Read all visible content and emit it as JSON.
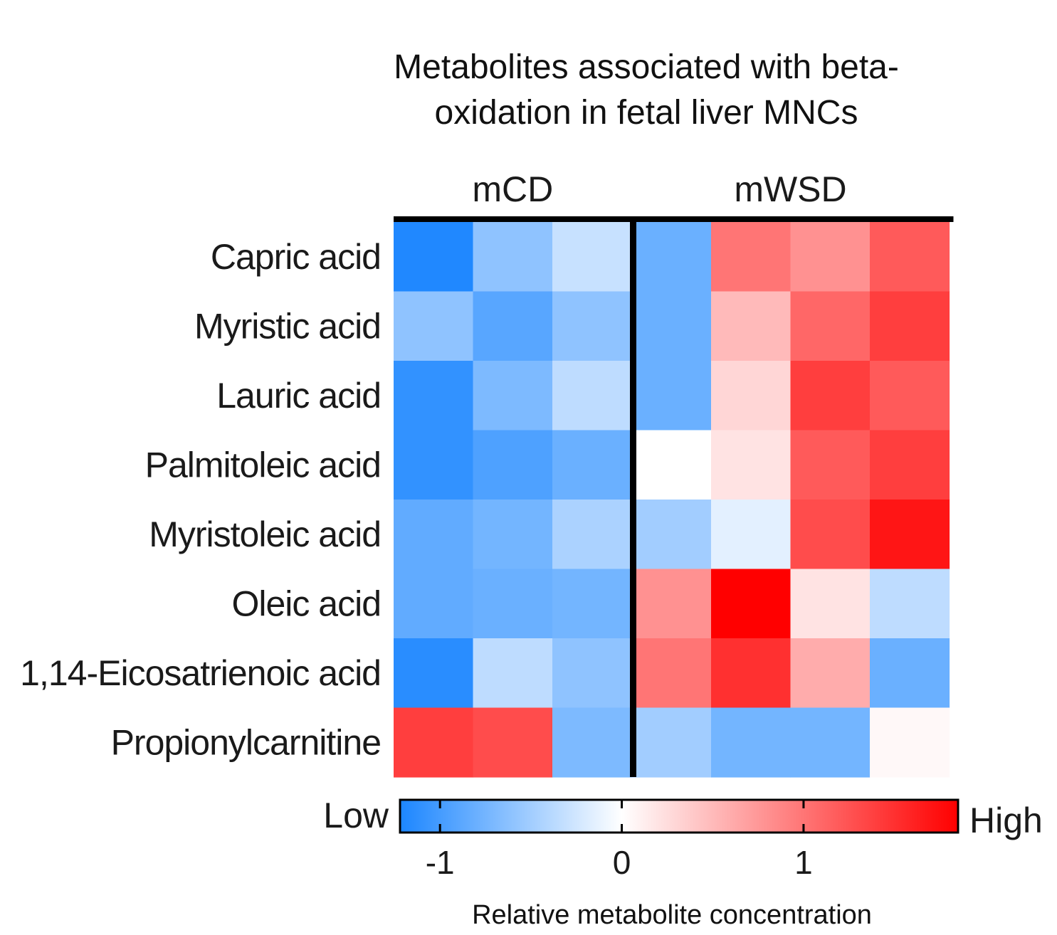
{
  "chart_data": {
    "type": "heatmap",
    "title": "Metabolites associated with beta-oxidation in fetal liver MNCs",
    "title_lines": [
      "Metabolites associated with beta-",
      "oxidation in fetal liver MNCs"
    ],
    "groups": [
      {
        "label": "mCD",
        "columns": 3
      },
      {
        "label": "mWSD",
        "columns": 4
      }
    ],
    "rows": [
      "Capric acid",
      "Myristic acid",
      "Lauric acid",
      "Palmitoleic acid",
      "Myristoleic acid",
      "Oleic acid",
      "1,14-Eicosatrienoic acid",
      "Propionylcarnitine"
    ],
    "values": [
      [
        -1.2,
        -0.6,
        -0.3,
        -0.8,
        1.0,
        0.8,
        1.2
      ],
      [
        -0.6,
        -0.9,
        -0.6,
        -0.8,
        0.5,
        1.1,
        1.4
      ],
      [
        -1.1,
        -0.7,
        -0.35,
        -0.8,
        0.3,
        1.4,
        1.2
      ],
      [
        -1.1,
        -0.95,
        -0.8,
        0.0,
        0.2,
        1.2,
        1.4
      ],
      [
        -0.85,
        -0.75,
        -0.45,
        -0.5,
        -0.15,
        1.3,
        1.7
      ],
      [
        -0.85,
        -0.8,
        -0.75,
        0.8,
        1.9,
        0.2,
        -0.35
      ],
      [
        -1.15,
        -0.35,
        -0.6,
        1.0,
        1.5,
        0.6,
        -0.8
      ],
      [
        1.4,
        1.3,
        -0.7,
        -0.5,
        -0.75,
        -0.75,
        0.05
      ]
    ],
    "colorbar": {
      "label": "Relative metabolite concentration",
      "low_label": "Low",
      "high_label": "High",
      "ticks": [
        -1,
        0,
        1
      ],
      "tick_labels": [
        "-1",
        "0",
        "1"
      ],
      "range": [
        -1.22,
        1.85
      ],
      "low_color": "#1c86ff",
      "mid_color": "#ffffff",
      "high_color": "#ff0000"
    },
    "separator_after_column": 3,
    "grid": false
  }
}
